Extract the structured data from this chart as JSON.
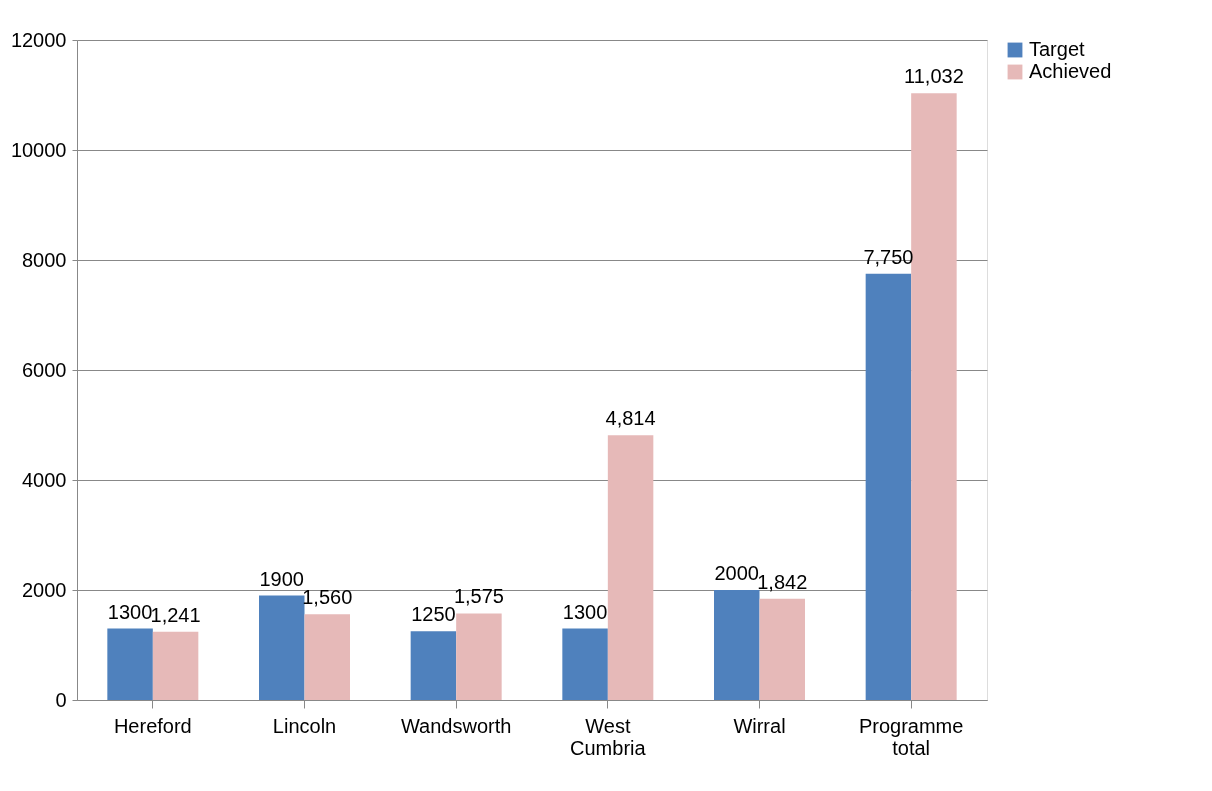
{
  "chart_data": {
    "type": "bar",
    "categories": [
      "Hereford",
      "Lincoln",
      "Wandsworth",
      "West Cumbria",
      "Wirral",
      "Programme total"
    ],
    "series": [
      {
        "name": "Target",
        "color": "#4f81bd",
        "values": [
          1300,
          1900,
          1250,
          1300,
          2000,
          7750
        ],
        "value_labels": [
          "1300",
          "1900",
          "1250",
          "1300",
          "2000",
          "7,750"
        ]
      },
      {
        "name": "Achieved",
        "color": "#e6b9b8",
        "values": [
          1241,
          1560,
          1575,
          4814,
          1842,
          11032
        ],
        "value_labels": [
          "1,241",
          "1,560",
          "1,575",
          "4,814",
          "1,842",
          "11,032"
        ]
      }
    ],
    "ylim": [
      0,
      12000
    ],
    "yticks": [
      0,
      2000,
      4000,
      6000,
      8000,
      10000,
      12000
    ],
    "grid": "y",
    "legend": "right"
  }
}
